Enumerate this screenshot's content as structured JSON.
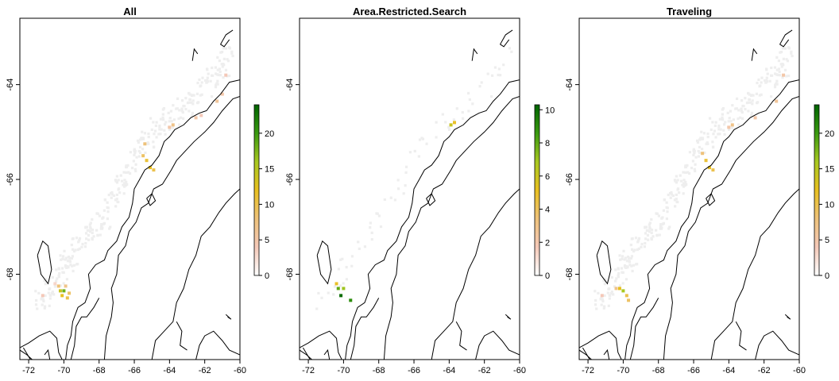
{
  "panels": [
    {
      "title": "All",
      "legend": {
        "min": 0,
        "max": 24,
        "ticks": [
          0,
          5,
          10,
          15,
          20
        ]
      },
      "hotspots": [
        {
          "lon": -70.2,
          "lat": -68.35,
          "v": 14
        },
        {
          "lon": -70.0,
          "lat": -68.35,
          "v": 18
        },
        {
          "lon": -70.1,
          "lat": -68.45,
          "v": 12
        },
        {
          "lon": -69.8,
          "lat": -68.5,
          "v": 10
        },
        {
          "lon": -70.3,
          "lat": -68.25,
          "v": 8
        },
        {
          "lon": -69.9,
          "lat": -68.25,
          "v": 7
        },
        {
          "lon": -69.7,
          "lat": -68.4,
          "v": 9
        },
        {
          "lon": -71.2,
          "lat": -68.45,
          "v": 4
        },
        {
          "lon": -70.5,
          "lat": -68.2,
          "v": 3
        },
        {
          "lon": -65.3,
          "lat": -65.6,
          "v": 11
        },
        {
          "lon": -65.1,
          "lat": -65.75,
          "v": 12
        },
        {
          "lon": -64.9,
          "lat": -65.8,
          "v": 10
        },
        {
          "lon": -65.5,
          "lat": -65.5,
          "v": 9
        },
        {
          "lon": -65.4,
          "lat": -65.25,
          "v": 8
        },
        {
          "lon": -63.8,
          "lat": -64.85,
          "v": 7
        },
        {
          "lon": -64.0,
          "lat": -64.9,
          "v": 5
        },
        {
          "lon": -62.5,
          "lat": -64.7,
          "v": 5
        },
        {
          "lon": -62.2,
          "lat": -64.65,
          "v": 4
        },
        {
          "lon": -61.3,
          "lat": -64.35,
          "v": 6
        },
        {
          "lon": -61.0,
          "lat": -64.2,
          "v": 5
        },
        {
          "lon": -60.8,
          "lat": -63.8,
          "v": 4
        }
      ]
    },
    {
      "title": "Area.Restricted.Search",
      "legend": {
        "min": 0,
        "max": 10.3,
        "ticks": [
          0,
          2,
          4,
          6,
          8,
          10
        ]
      },
      "hotspots": [
        {
          "lon": -70.3,
          "lat": -68.3,
          "v": 8
        },
        {
          "lon": -70.15,
          "lat": -68.45,
          "v": 10
        },
        {
          "lon": -70.0,
          "lat": -68.3,
          "v": 7
        },
        {
          "lon": -69.6,
          "lat": -68.55,
          "v": 9
        },
        {
          "lon": -70.4,
          "lat": -68.2,
          "v": 5
        },
        {
          "lon": -63.9,
          "lat": -64.85,
          "v": 6
        },
        {
          "lon": -63.7,
          "lat": -64.8,
          "v": 5
        }
      ]
    },
    {
      "title": "Traveling",
      "legend": {
        "min": 0,
        "max": 24,
        "ticks": [
          0,
          5,
          10,
          15,
          20
        ]
      },
      "hotspots": [
        {
          "lon": -70.2,
          "lat": -68.3,
          "v": 12
        },
        {
          "lon": -70.0,
          "lat": -68.35,
          "v": 16
        },
        {
          "lon": -69.8,
          "lat": -68.45,
          "v": 10
        },
        {
          "lon": -69.7,
          "lat": -68.55,
          "v": 9
        },
        {
          "lon": -70.4,
          "lat": -68.3,
          "v": 7
        },
        {
          "lon": -71.2,
          "lat": -68.45,
          "v": 4
        },
        {
          "lon": -65.3,
          "lat": -65.6,
          "v": 11
        },
        {
          "lon": -65.1,
          "lat": -65.75,
          "v": 12
        },
        {
          "lon": -64.9,
          "lat": -65.8,
          "v": 10
        },
        {
          "lon": -65.5,
          "lat": -65.45,
          "v": 8
        },
        {
          "lon": -63.8,
          "lat": -64.85,
          "v": 7
        },
        {
          "lon": -64.0,
          "lat": -64.9,
          "v": 5
        },
        {
          "lon": -62.5,
          "lat": -64.7,
          "v": 5
        },
        {
          "lon": -61.3,
          "lat": -64.35,
          "v": 6
        },
        {
          "lon": -60.9,
          "lat": -63.8,
          "v": 5
        }
      ]
    }
  ],
  "map": {
    "lon_range": [
      -72.5,
      -60
    ],
    "lat_range": [
      -69.8,
      -62.6
    ],
    "x_ticks": [
      -72,
      -70,
      -68,
      -66,
      -64,
      -62,
      -60
    ],
    "y_ticks": [
      -64,
      -66,
      -68
    ]
  },
  "colors": {
    "background_cells": "#eeeeee",
    "coast": "#000000",
    "ramp": [
      "#ffffff",
      "#f4c8b8",
      "#eec27a",
      "#e8c020",
      "#a8c820",
      "#3a9a10",
      "#006400"
    ]
  }
}
